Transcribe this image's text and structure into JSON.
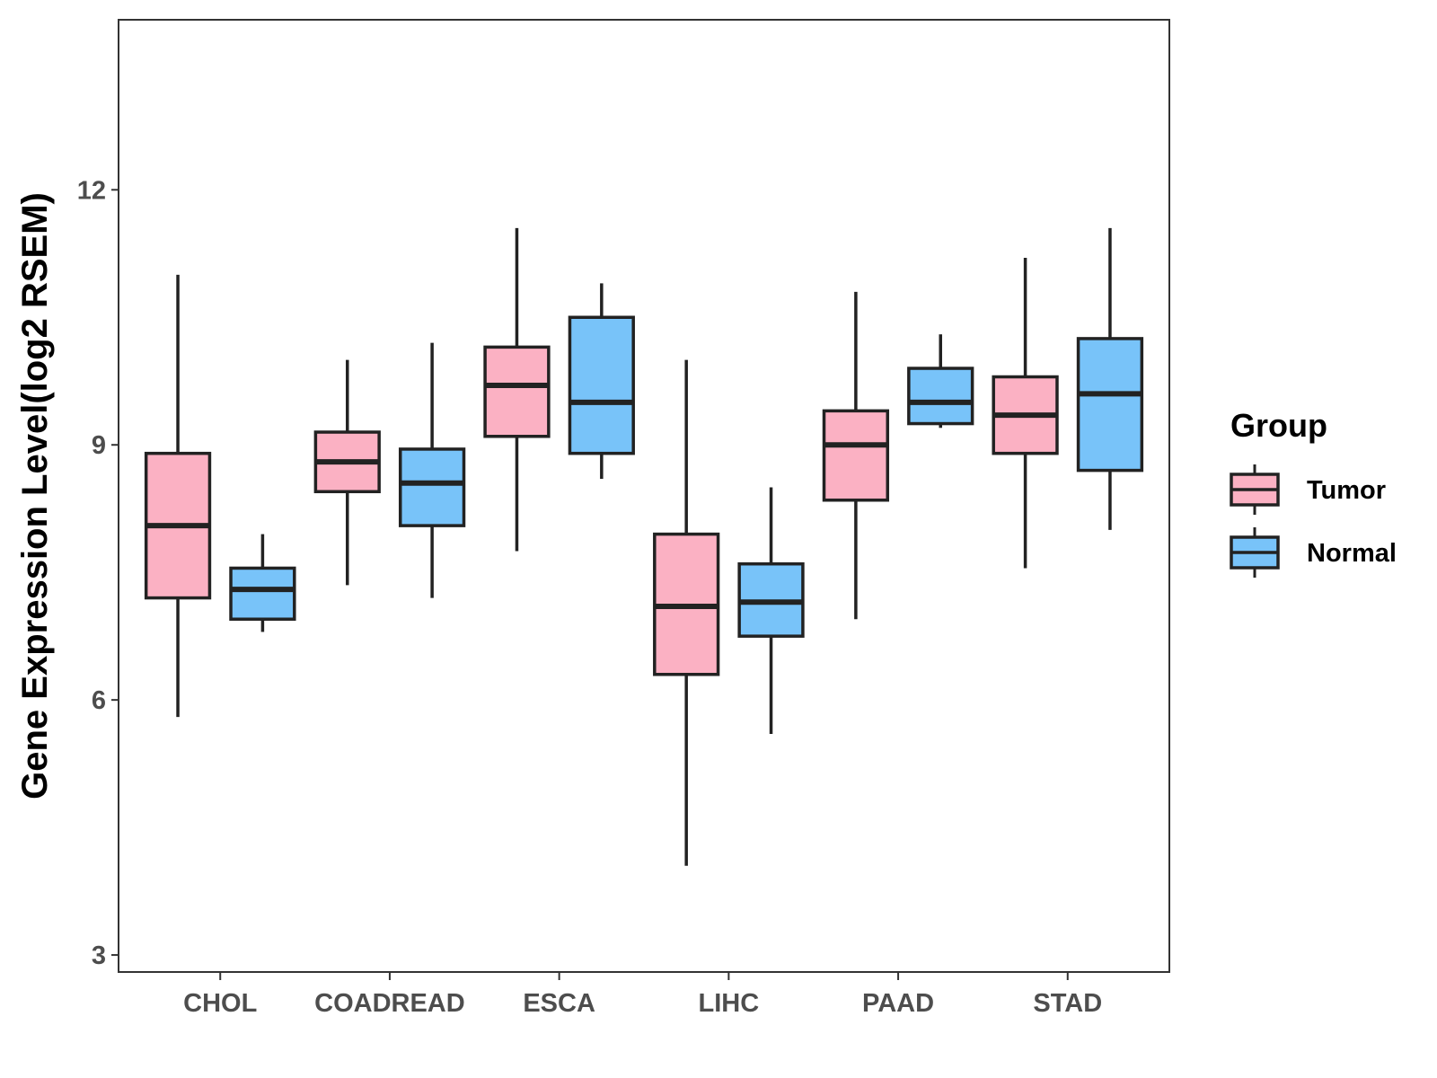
{
  "chart_data": {
    "type": "boxplot",
    "ylabel": "Gene Expression Level(log2 RSEM)",
    "xlabel": "",
    "ylim": [
      2.8,
      14.0
    ],
    "yticks": [
      3,
      6,
      9,
      12
    ],
    "grid": false,
    "legend_position": "right",
    "legend_title": "Group",
    "categories": [
      "CHOL",
      "COADREAD",
      "ESCA",
      "LIHC",
      "PAAD",
      "STAD"
    ],
    "series": [
      {
        "name": "Tumor",
        "color": "#FBB1C3",
        "boxes": [
          {
            "whisker_low": 5.8,
            "q1": 7.2,
            "median": 8.05,
            "q3": 8.9,
            "whisker_high": 11.0
          },
          {
            "whisker_low": 7.35,
            "q1": 8.45,
            "median": 8.8,
            "q3": 9.15,
            "whisker_high": 10.0
          },
          {
            "whisker_low": 7.75,
            "q1": 9.1,
            "median": 9.7,
            "q3": 10.15,
            "whisker_high": 11.55
          },
          {
            "whisker_low": 4.05,
            "q1": 6.3,
            "median": 7.1,
            "q3": 7.95,
            "whisker_high": 10.0
          },
          {
            "whisker_low": 6.95,
            "q1": 8.35,
            "median": 9.0,
            "q3": 9.4,
            "whisker_high": 10.8
          },
          {
            "whisker_low": 7.55,
            "q1": 8.9,
            "median": 9.35,
            "q3": 9.8,
            "whisker_high": 11.2
          }
        ]
      },
      {
        "name": "Normal",
        "color": "#78C3F9",
        "boxes": [
          {
            "whisker_low": 6.8,
            "q1": 6.95,
            "median": 7.3,
            "q3": 7.55,
            "whisker_high": 7.95
          },
          {
            "whisker_low": 7.2,
            "q1": 8.05,
            "median": 8.55,
            "q3": 8.95,
            "whisker_high": 10.2
          },
          {
            "whisker_low": 8.6,
            "q1": 8.9,
            "median": 9.5,
            "q3": 10.5,
            "whisker_high": 10.9
          },
          {
            "whisker_low": 5.6,
            "q1": 6.75,
            "median": 7.15,
            "q3": 7.6,
            "whisker_high": 8.5
          },
          {
            "whisker_low": 9.2,
            "q1": 9.25,
            "median": 9.5,
            "q3": 9.9,
            "whisker_high": 10.3
          },
          {
            "whisker_low": 8.0,
            "q1": 8.7,
            "median": 9.6,
            "q3": 10.25,
            "whisker_high": 11.55
          }
        ]
      }
    ]
  }
}
